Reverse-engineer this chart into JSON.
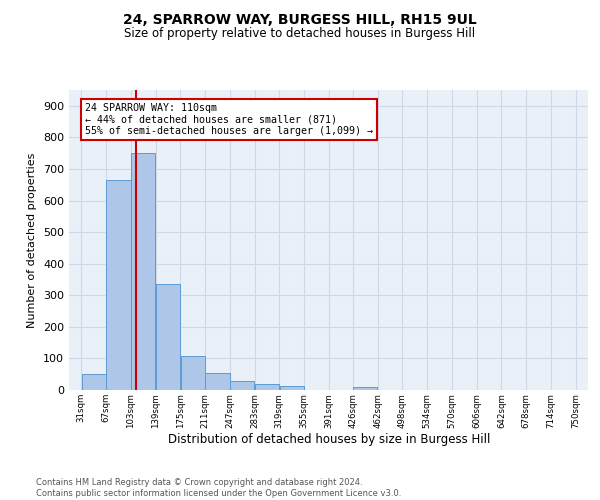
{
  "title1": "24, SPARROW WAY, BURGESS HILL, RH15 9UL",
  "title2": "Size of property relative to detached houses in Burgess Hill",
  "xlabel": "Distribution of detached houses by size in Burgess Hill",
  "ylabel": "Number of detached properties",
  "footer1": "Contains HM Land Registry data © Crown copyright and database right 2024.",
  "footer2": "Contains public sector information licensed under the Open Government Licence v3.0.",
  "bar_edges": [
    31,
    67,
    103,
    139,
    175,
    211,
    247,
    283,
    319,
    355,
    391,
    426,
    462,
    498,
    534,
    570,
    606,
    642,
    678,
    714,
    750
  ],
  "bar_heights": [
    50,
    665,
    750,
    335,
    108,
    53,
    27,
    18,
    13,
    0,
    0,
    8,
    0,
    0,
    0,
    0,
    0,
    0,
    0,
    0
  ],
  "bar_color": "#aec6e8",
  "bar_edgecolor": "#5b9bd5",
  "vline_x": 110,
  "vline_color": "#cc0000",
  "annotation_text": "24 SPARROW WAY: 110sqm\n← 44% of detached houses are smaller (871)\n55% of semi-detached houses are larger (1,099) →",
  "annotation_box_color": "#ffffff",
  "annotation_box_edgecolor": "#cc0000",
  "ylim": [
    0,
    950
  ],
  "yticks": [
    0,
    100,
    200,
    300,
    400,
    500,
    600,
    700,
    800,
    900
  ],
  "tick_labels": [
    "31sqm",
    "67sqm",
    "103sqm",
    "139sqm",
    "175sqm",
    "211sqm",
    "247sqm",
    "283sqm",
    "319sqm",
    "355sqm",
    "391sqm",
    "426sqm",
    "462sqm",
    "498sqm",
    "534sqm",
    "570sqm",
    "606sqm",
    "642sqm",
    "678sqm",
    "714sqm",
    "750sqm"
  ],
  "grid_color": "#d0d8e8",
  "bg_color": "#eaf0f8",
  "xlim_left": 13,
  "xlim_right": 768
}
